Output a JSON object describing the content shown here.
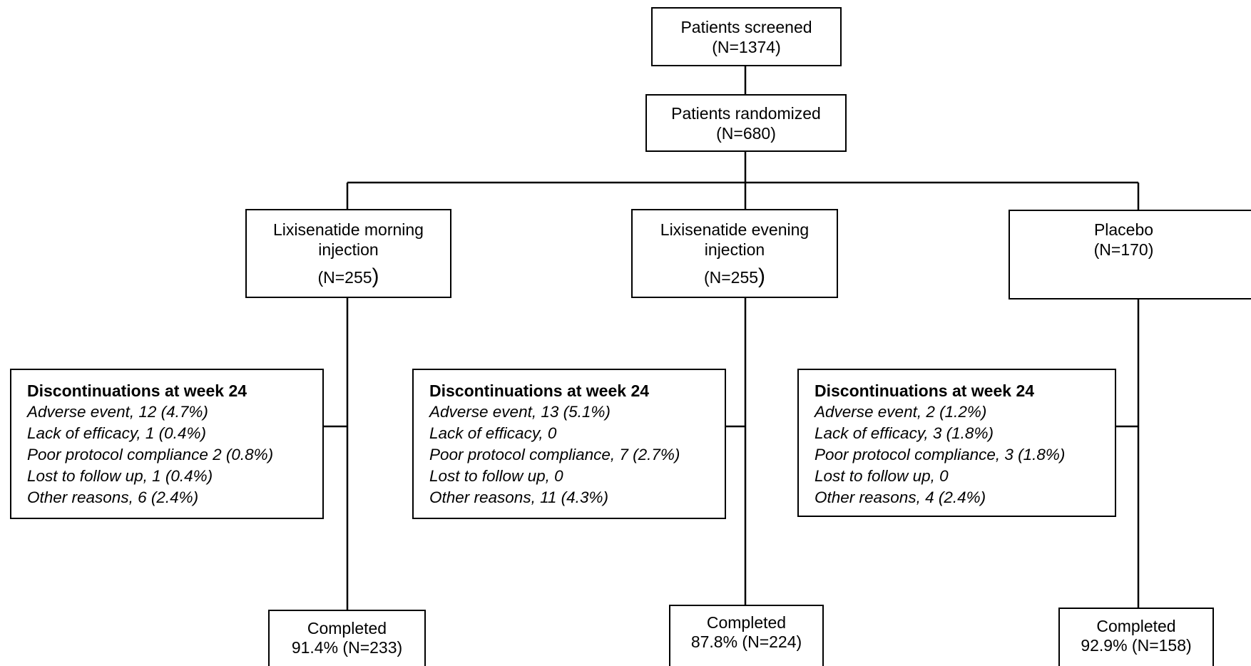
{
  "screened": {
    "title": "Patients screened",
    "count": "(N=1374)"
  },
  "randomized": {
    "title": "Patients randomized",
    "count": "(N=680)"
  },
  "arms": [
    {
      "title_line1": "Lixisenatide morning",
      "title_line2": "injection",
      "count": "(N=255",
      "close": ")",
      "discontinuations": {
        "title": "Discontinuations at week 24",
        "items": [
          "Adverse event, 12 (4.7%)",
          "Lack of efficacy, 1 (0.4%)",
          "Poor protocol compliance 2 (0.8%)",
          "Lost to follow up, 1 (0.4%)",
          "Other reasons, 6 (2.4%)"
        ]
      },
      "completed": {
        "label": "Completed",
        "value": "91.4% (N=233)"
      }
    },
    {
      "title_line1": "Lixisenatide evening",
      "title_line2": "injection",
      "count": "(N=255",
      "close": ")",
      "discontinuations": {
        "title": "Discontinuations at week 24",
        "items": [
          "Adverse event, 13 (5.1%)",
          "Lack of efficacy, 0",
          "Poor protocol compliance, 7 (2.7%)",
          "Lost to follow up, 0",
          "Other reasons, 11 (4.3%)"
        ]
      },
      "completed": {
        "label": "Completed",
        "value": "87.8% (N=224)"
      }
    },
    {
      "title_line1": "Placebo",
      "count": "(N=170)",
      "discontinuations": {
        "title": "Discontinuations at week 24",
        "items": [
          "Adverse event, 2 (1.2%)",
          "Lack of efficacy, 3 (1.8%)",
          "Poor protocol compliance, 3 (1.8%)",
          "Lost to follow up, 0",
          "Other reasons, 4 (2.4%)"
        ]
      },
      "completed": {
        "label": "Completed",
        "value": "92.9% (N=158)"
      }
    }
  ]
}
